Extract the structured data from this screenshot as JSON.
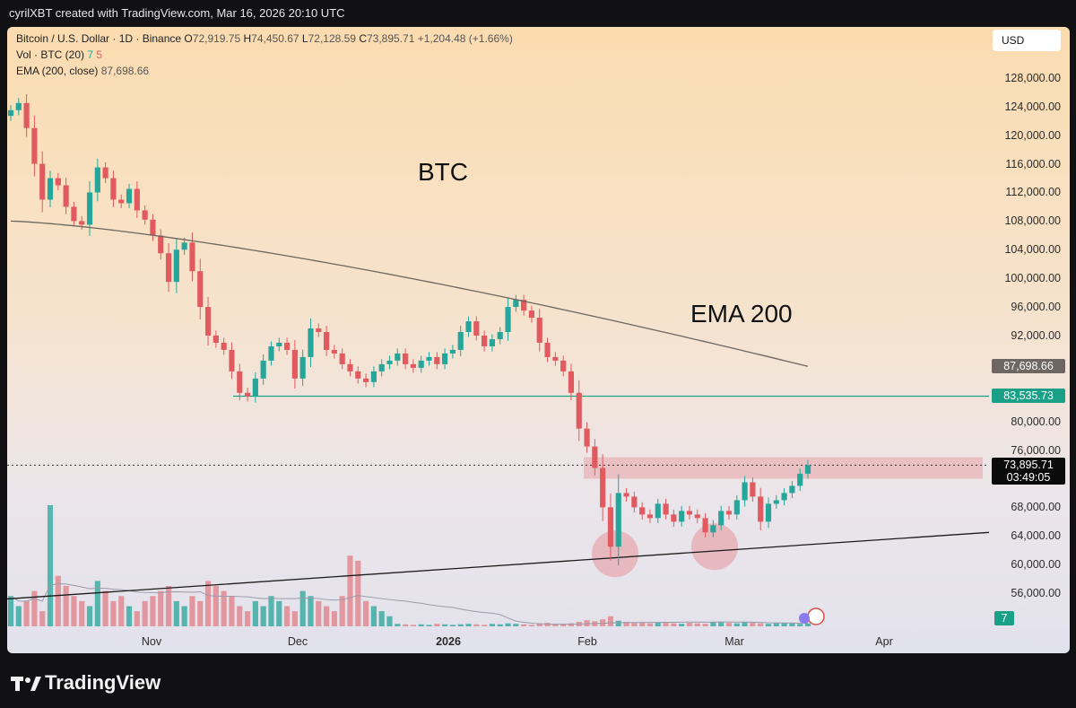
{
  "header": {
    "created_by": "cyrilXBT created with TradingView.com, Mar 16, 2026 20:10 UTC"
  },
  "legend": {
    "symbol": "Bitcoin / U.S. Dollar · 1D · Binance",
    "open_label": "O",
    "open": "72,919.75",
    "high_label": "H",
    "high": "74,450.67",
    "low_label": "L",
    "low": "72,128.59",
    "close_label": "C",
    "close": "73,895.71",
    "change": "+1,204.48 (+1.66%)",
    "vol_label": "Vol · BTC (20)",
    "vol_a": "7",
    "vol_b": "5",
    "ema_label": "EMA (200, close)",
    "ema_value": "87,698.66"
  },
  "currency": "USD",
  "annotations": {
    "btc": "BTC",
    "ema": "EMA 200"
  },
  "tags": {
    "ema": "87,698.66",
    "resistance": "83,535.73",
    "price": "73,895.71",
    "countdown": "03:49:05",
    "volume": "7"
  },
  "brand": "TradingView",
  "colors": {
    "up": "#26a69a",
    "down": "#e05a5f",
    "ema": "#6e6660",
    "resistance_line": "#1aa087",
    "trendline": "#1b1b1b",
    "zone": "#e8939a"
  },
  "chart_data": {
    "type": "candlestick",
    "title": "Bitcoin / U.S. Dollar · 1D · Binance",
    "y_axis": {
      "ticks": [
        "56,000.00",
        "60,000.00",
        "64,000.00",
        "68,000.00",
        "72,000.00",
        "76,000.00",
        "80,000.00",
        "84,000.00",
        "88,000.00",
        "92,000.00",
        "96,000.00",
        "100,000.00",
        "104,000.00",
        "108,000.00",
        "112,000.00",
        "116,000.00",
        "120,000.00",
        "124,000.00",
        "128,000.00"
      ],
      "range": [
        53000,
        132000
      ]
    },
    "x_axis": {
      "ticks": [
        "Nov",
        "Dec",
        "2026",
        "Feb",
        "Mar",
        "Apr"
      ],
      "bold": [
        false,
        false,
        true,
        false,
        false,
        false
      ]
    },
    "close_series": [
      123500,
      124500,
      121000,
      116000,
      111000,
      114000,
      113000,
      110000,
      108000,
      107500,
      112000,
      115500,
      114000,
      111000,
      110500,
      112500,
      109500,
      108200,
      106000,
      103500,
      99500,
      104000,
      105000,
      101000,
      96000,
      92000,
      91000,
      90000,
      87000,
      84000,
      83500,
      86000,
      88500,
      90500,
      91000,
      90000,
      86000,
      89000,
      93000,
      92500,
      90000,
      89500,
      88000,
      87000,
      86000,
      85500,
      87000,
      88000,
      88500,
      89500,
      88000,
      87500,
      88500,
      89000,
      88000,
      89500,
      90000,
      92500,
      94000,
      92000,
      90500,
      91500,
      92500,
      96000,
      97000,
      95500,
      94500,
      91000,
      89000,
      88500,
      87000,
      84000,
      79000,
      76500,
      73500,
      68000,
      62500,
      70000,
      69500,
      68000,
      67000,
      66500,
      68500,
      67000,
      66000,
      67500,
      67000,
      66500,
      64500,
      65500,
      67500,
      67000,
      69000,
      71500,
      69500,
      66000,
      68500,
      69000,
      70000,
      71000,
      72700,
      73900
    ],
    "ema_200": {
      "start": 108000,
      "end": 87698.66
    },
    "horizontal_line": {
      "label": "83,535.73",
      "value": 83535.73
    },
    "current_price": {
      "value": 73895.71,
      "label": "73,895.71",
      "countdown": "03:49:05"
    },
    "resistance_zone": {
      "low": 72000,
      "high": 75000
    },
    "trendline": {
      "from_value": 55200,
      "to_value": 64500
    },
    "highlighted_lows": [
      61500,
      62500
    ],
    "volume_series": [
      6,
      4,
      5,
      7,
      3,
      24,
      10,
      8,
      6,
      5,
      4,
      9,
      7,
      5,
      6,
      4,
      3,
      5,
      6,
      7,
      8,
      5,
      4,
      6,
      5,
      9,
      8,
      7,
      6,
      4,
      3,
      5,
      4,
      6,
      5,
      4,
      3,
      7,
      6,
      5,
      4,
      3,
      6,
      14,
      13,
      5,
      4,
      3,
      2,
      0.5,
      0.4,
      0.3,
      0.4,
      0.3,
      0.5,
      0.4,
      0.3,
      0.4,
      0.5,
      0.4,
      0.3,
      0.5,
      0.4,
      0.6,
      0.5,
      0.4,
      0.3,
      0.6,
      0.7,
      0.5,
      0.4,
      0.6,
      0.9,
      1.2,
      1.0,
      1.4,
      2.0,
      1.1,
      0.9,
      0.8,
      0.7,
      0.6,
      0.7,
      0.8,
      0.6,
      0.5,
      0.7,
      0.6,
      0.5,
      0.8,
      0.9,
      0.7,
      0.6,
      0.8,
      0.7,
      0.6,
      0.5,
      0.6,
      0.7,
      0.6,
      0.5,
      0.6
    ]
  }
}
